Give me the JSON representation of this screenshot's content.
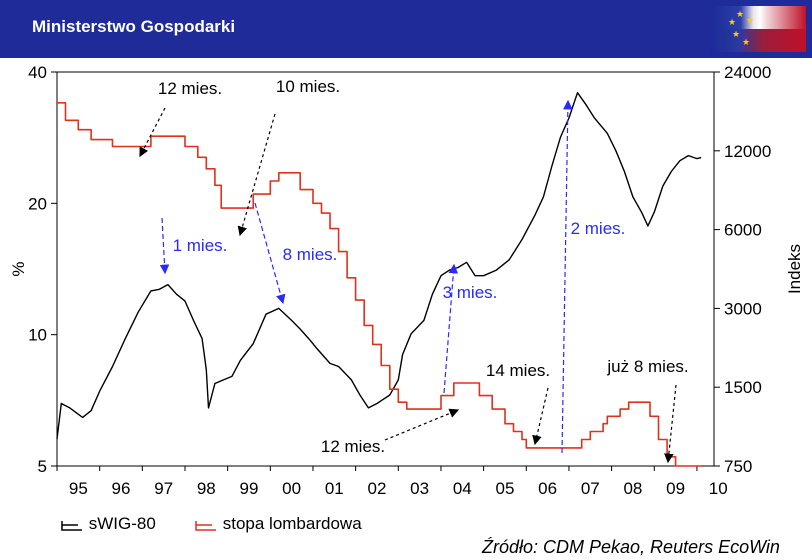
{
  "header": {
    "title": "Ministerstwo Gospodarki"
  },
  "chart_data": {
    "type": "line",
    "title": "",
    "left_axis": {
      "label": "%",
      "scale": "log",
      "ticks": [
        5,
        10,
        20,
        40
      ],
      "range": [
        5,
        40
      ]
    },
    "right_axis": {
      "label": "Indeks",
      "scale": "log",
      "ticks": [
        750,
        1500,
        3000,
        6000,
        12000,
        24000
      ],
      "range": [
        750,
        24000
      ]
    },
    "x_axis": {
      "range": [
        1995,
        2010.4
      ],
      "tick_labels": [
        "95",
        "96",
        "97",
        "98",
        "99",
        "00",
        "01",
        "02",
        "03",
        "04",
        "05",
        "06",
        "07",
        "08",
        "09",
        "10"
      ]
    },
    "series": [
      {
        "name": "sWIG-80",
        "axis": "right",
        "color": "#000000",
        "points": [
          [
            1995.0,
            950
          ],
          [
            1995.1,
            1300
          ],
          [
            1995.3,
            1250
          ],
          [
            1995.6,
            1150
          ],
          [
            1995.8,
            1220
          ],
          [
            1996.0,
            1450
          ],
          [
            1996.3,
            1800
          ],
          [
            1996.6,
            2300
          ],
          [
            1996.9,
            2900
          ],
          [
            1997.2,
            3500
          ],
          [
            1997.4,
            3550
          ],
          [
            1997.6,
            3700
          ],
          [
            1997.8,
            3400
          ],
          [
            1998.0,
            3200
          ],
          [
            1998.2,
            2700
          ],
          [
            1998.4,
            2300
          ],
          [
            1998.5,
            1750
          ],
          [
            1998.55,
            1250
          ],
          [
            1998.7,
            1550
          ],
          [
            1998.9,
            1600
          ],
          [
            1999.1,
            1650
          ],
          [
            1999.3,
            1900
          ],
          [
            1999.6,
            2200
          ],
          [
            1999.9,
            2850
          ],
          [
            2000.2,
            3000
          ],
          [
            2000.5,
            2700
          ],
          [
            2000.7,
            2500
          ],
          [
            2000.9,
            2300
          ],
          [
            2001.1,
            2100
          ],
          [
            2001.4,
            1850
          ],
          [
            2001.6,
            1800
          ],
          [
            2001.9,
            1600
          ],
          [
            2002.1,
            1400
          ],
          [
            2002.3,
            1250
          ],
          [
            2002.5,
            1300
          ],
          [
            2002.8,
            1400
          ],
          [
            2003.0,
            1600
          ],
          [
            2003.1,
            2000
          ],
          [
            2003.3,
            2400
          ],
          [
            2003.6,
            2700
          ],
          [
            2003.8,
            3400
          ],
          [
            2004.0,
            4000
          ],
          [
            2004.2,
            4200
          ],
          [
            2004.4,
            4300
          ],
          [
            2004.6,
            4500
          ],
          [
            2004.8,
            4000
          ],
          [
            2005.0,
            4000
          ],
          [
            2005.3,
            4200
          ],
          [
            2005.6,
            4600
          ],
          [
            2005.9,
            5500
          ],
          [
            2006.2,
            6800
          ],
          [
            2006.4,
            8000
          ],
          [
            2006.6,
            10500
          ],
          [
            2006.8,
            13500
          ],
          [
            2007.0,
            16000
          ],
          [
            2007.2,
            20000
          ],
          [
            2007.4,
            18000
          ],
          [
            2007.6,
            16000
          ],
          [
            2007.9,
            14000
          ],
          [
            2008.1,
            12000
          ],
          [
            2008.3,
            10000
          ],
          [
            2008.5,
            8000
          ],
          [
            2008.7,
            7000
          ],
          [
            2008.85,
            6200
          ],
          [
            2009.0,
            7000
          ],
          [
            2009.2,
            8800
          ],
          [
            2009.4,
            10000
          ],
          [
            2009.6,
            11000
          ],
          [
            2009.8,
            11500
          ],
          [
            2010.0,
            11200
          ],
          [
            2010.1,
            11300
          ]
        ]
      },
      {
        "name": "stopa lombardowa",
        "axis": "left",
        "color": "#e0301e",
        "points": [
          [
            1995.0,
            34
          ],
          [
            1995.2,
            34
          ],
          [
            1995.2,
            31
          ],
          [
            1995.5,
            31
          ],
          [
            1995.5,
            29.5
          ],
          [
            1995.8,
            29.5
          ],
          [
            1995.8,
            28
          ],
          [
            1996.3,
            28
          ],
          [
            1996.3,
            27
          ],
          [
            1997.2,
            27
          ],
          [
            1997.2,
            28.5
          ],
          [
            1998.0,
            28.5
          ],
          [
            1998.0,
            27
          ],
          [
            1998.3,
            27
          ],
          [
            1998.3,
            25.5
          ],
          [
            1998.5,
            25.5
          ],
          [
            1998.5,
            24
          ],
          [
            1998.7,
            24
          ],
          [
            1998.7,
            22
          ],
          [
            1998.85,
            22
          ],
          [
            1998.85,
            19.5
          ],
          [
            1999.6,
            19.5
          ],
          [
            1999.6,
            21
          ],
          [
            2000.0,
            21
          ],
          [
            2000.0,
            22.5
          ],
          [
            2000.2,
            22.5
          ],
          [
            2000.2,
            23.5
          ],
          [
            2000.7,
            23.5
          ],
          [
            2000.7,
            21.5
          ],
          [
            2001.0,
            21.5
          ],
          [
            2001.0,
            20
          ],
          [
            2001.2,
            20
          ],
          [
            2001.2,
            19
          ],
          [
            2001.4,
            19
          ],
          [
            2001.4,
            17.5
          ],
          [
            2001.6,
            17.5
          ],
          [
            2001.6,
            15.5
          ],
          [
            2001.8,
            15.5
          ],
          [
            2001.8,
            13.5
          ],
          [
            2002.0,
            13.5
          ],
          [
            2002.0,
            12
          ],
          [
            2002.2,
            12
          ],
          [
            2002.2,
            10.5
          ],
          [
            2002.4,
            10.5
          ],
          [
            2002.4,
            9.5
          ],
          [
            2002.6,
            9.5
          ],
          [
            2002.6,
            8.5
          ],
          [
            2002.8,
            8.5
          ],
          [
            2002.8,
            7.5
          ],
          [
            2003.0,
            7.5
          ],
          [
            2003.0,
            7.0
          ],
          [
            2003.2,
            7.0
          ],
          [
            2003.2,
            6.75
          ],
          [
            2004.0,
            6.75
          ],
          [
            2004.0,
            7.25
          ],
          [
            2004.3,
            7.25
          ],
          [
            2004.3,
            7.75
          ],
          [
            2004.9,
            7.75
          ],
          [
            2004.9,
            7.25
          ],
          [
            2005.2,
            7.25
          ],
          [
            2005.2,
            6.75
          ],
          [
            2005.5,
            6.75
          ],
          [
            2005.5,
            6.25
          ],
          [
            2005.7,
            6.25
          ],
          [
            2005.7,
            6.0
          ],
          [
            2005.9,
            6.0
          ],
          [
            2005.9,
            5.75
          ],
          [
            2006.0,
            5.75
          ],
          [
            2006.0,
            5.5
          ],
          [
            2007.3,
            5.5
          ],
          [
            2007.3,
            5.75
          ],
          [
            2007.5,
            5.75
          ],
          [
            2007.5,
            6.0
          ],
          [
            2007.8,
            6.0
          ],
          [
            2007.8,
            6.25
          ],
          [
            2007.9,
            6.25
          ],
          [
            2007.9,
            6.5
          ],
          [
            2008.2,
            6.5
          ],
          [
            2008.2,
            6.75
          ],
          [
            2008.4,
            6.75
          ],
          [
            2008.4,
            7.0
          ],
          [
            2008.9,
            7.0
          ],
          [
            2008.9,
            6.5
          ],
          [
            2009.1,
            6.5
          ],
          [
            2009.1,
            5.75
          ],
          [
            2009.3,
            5.75
          ],
          [
            2009.3,
            5.25
          ],
          [
            2009.5,
            5.25
          ],
          [
            2009.5,
            5.0
          ],
          [
            2010.1,
            5.0
          ]
        ]
      }
    ],
    "annotations": [
      {
        "text": "12 mies.",
        "color": "#000000"
      },
      {
        "text": "10 mies.",
        "color": "#000000"
      },
      {
        "text": "1 mies.",
        "color": "#2a2aff"
      },
      {
        "text": "8 mies.",
        "color": "#2a2aff"
      },
      {
        "text": "3 mies.",
        "color": "#2a2aff"
      },
      {
        "text": "2 mies.",
        "color": "#2a2aff"
      },
      {
        "text": "14 mies.",
        "color": "#000000"
      },
      {
        "text": "już 8 mies.",
        "color": "#000000"
      },
      {
        "text": "12 mies.",
        "color": "#000000"
      }
    ],
    "legend": [
      {
        "label": "sWIG-80",
        "color": "#000000"
      },
      {
        "label": "stopa lombardowa",
        "color": "#e0301e"
      }
    ],
    "source": "Źródło: CDM Pekao, Reuters EcoWin"
  }
}
